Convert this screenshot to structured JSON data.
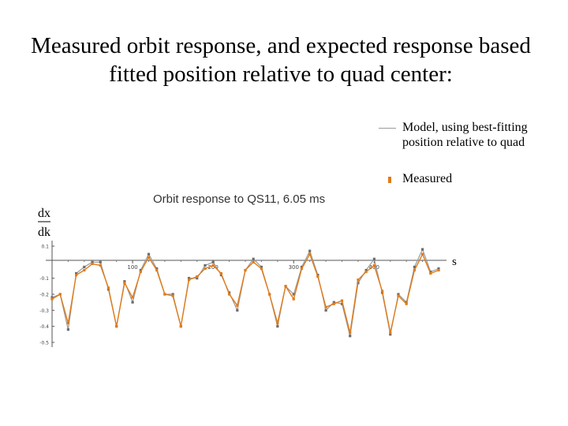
{
  "slide": {
    "title": "Measured orbit response, and expected response based\nfitted position relative to quad center:"
  },
  "legend": [
    {
      "label": "Model, using best-fitting\nposition relative to quad",
      "marker": "line",
      "color": "#9a9a9a"
    },
    {
      "label": "Measured",
      "marker": "dot",
      "color": "#e07b1a"
    }
  ],
  "chart_data": {
    "type": "line",
    "title": "Orbit response to QS11, 6.05 ms",
    "xlabel": "s",
    "ylabel_top": "dx",
    "ylabel_bottom": "dk",
    "xlim": [
      0,
      480
    ],
    "ylim": [
      -0.5,
      0.1
    ],
    "xticks": [
      100,
      200,
      300,
      400
    ],
    "yticks": [
      0.1,
      -0.1,
      -0.2,
      -0.3,
      -0.4,
      -0.5
    ],
    "ytick_labels": [
      "0.1",
      "-0.1",
      "-0.2",
      "-0.3",
      "-0.4",
      "-0.5"
    ],
    "grid": false,
    "series": [
      {
        "name": "Model, using best-fitting position relative to quad",
        "color": "#9a9a9a",
        "x": [
          0,
          10,
          20,
          30,
          40,
          50,
          60,
          70,
          80,
          90,
          100,
          110,
          120,
          130,
          140,
          150,
          160,
          170,
          180,
          190,
          200,
          210,
          220,
          230,
          240,
          250,
          260,
          270,
          280,
          290,
          300,
          310,
          320,
          330,
          340,
          350,
          360,
          370,
          380,
          390,
          400,
          410,
          420,
          430,
          440,
          450,
          460,
          470,
          480
        ],
        "y": [
          -0.22,
          -0.2,
          -0.42,
          -0.07,
          -0.03,
          0.0,
          0.0,
          -0.17,
          -0.4,
          -0.12,
          -0.25,
          -0.05,
          0.05,
          -0.04,
          -0.2,
          -0.2,
          -0.4,
          -0.1,
          -0.1,
          -0.02,
          0.0,
          -0.08,
          -0.19,
          -0.3,
          -0.05,
          0.02,
          -0.03,
          -0.2,
          -0.4,
          -0.15,
          -0.2,
          -0.03,
          0.07,
          -0.08,
          -0.3,
          -0.25,
          -0.26,
          -0.46,
          -0.13,
          -0.05,
          0.02,
          -0.19,
          -0.45,
          -0.2,
          -0.25,
          -0.03,
          0.08,
          -0.06,
          -0.04
        ]
      },
      {
        "name": "Measured",
        "color": "#e07b1a",
        "x": [
          0,
          10,
          20,
          30,
          40,
          50,
          60,
          70,
          80,
          90,
          100,
          110,
          120,
          130,
          140,
          150,
          160,
          170,
          180,
          190,
          200,
          210,
          220,
          230,
          240,
          250,
          260,
          270,
          280,
          290,
          300,
          310,
          320,
          330,
          340,
          350,
          360,
          370,
          380,
          390,
          400,
          410,
          420,
          430,
          440,
          450,
          460,
          470,
          480
        ],
        "y": [
          -0.23,
          -0.2,
          -0.38,
          -0.08,
          -0.05,
          -0.01,
          -0.02,
          -0.16,
          -0.4,
          -0.13,
          -0.22,
          -0.06,
          0.03,
          -0.05,
          -0.2,
          -0.21,
          -0.4,
          -0.11,
          -0.09,
          -0.04,
          -0.02,
          -0.07,
          -0.2,
          -0.27,
          -0.05,
          0.0,
          -0.04,
          -0.2,
          -0.38,
          -0.15,
          -0.23,
          -0.04,
          0.05,
          -0.09,
          -0.28,
          -0.26,
          -0.24,
          -0.44,
          -0.11,
          -0.06,
          -0.02,
          -0.18,
          -0.44,
          -0.21,
          -0.26,
          -0.05,
          0.05,
          -0.07,
          -0.05
        ]
      }
    ]
  }
}
